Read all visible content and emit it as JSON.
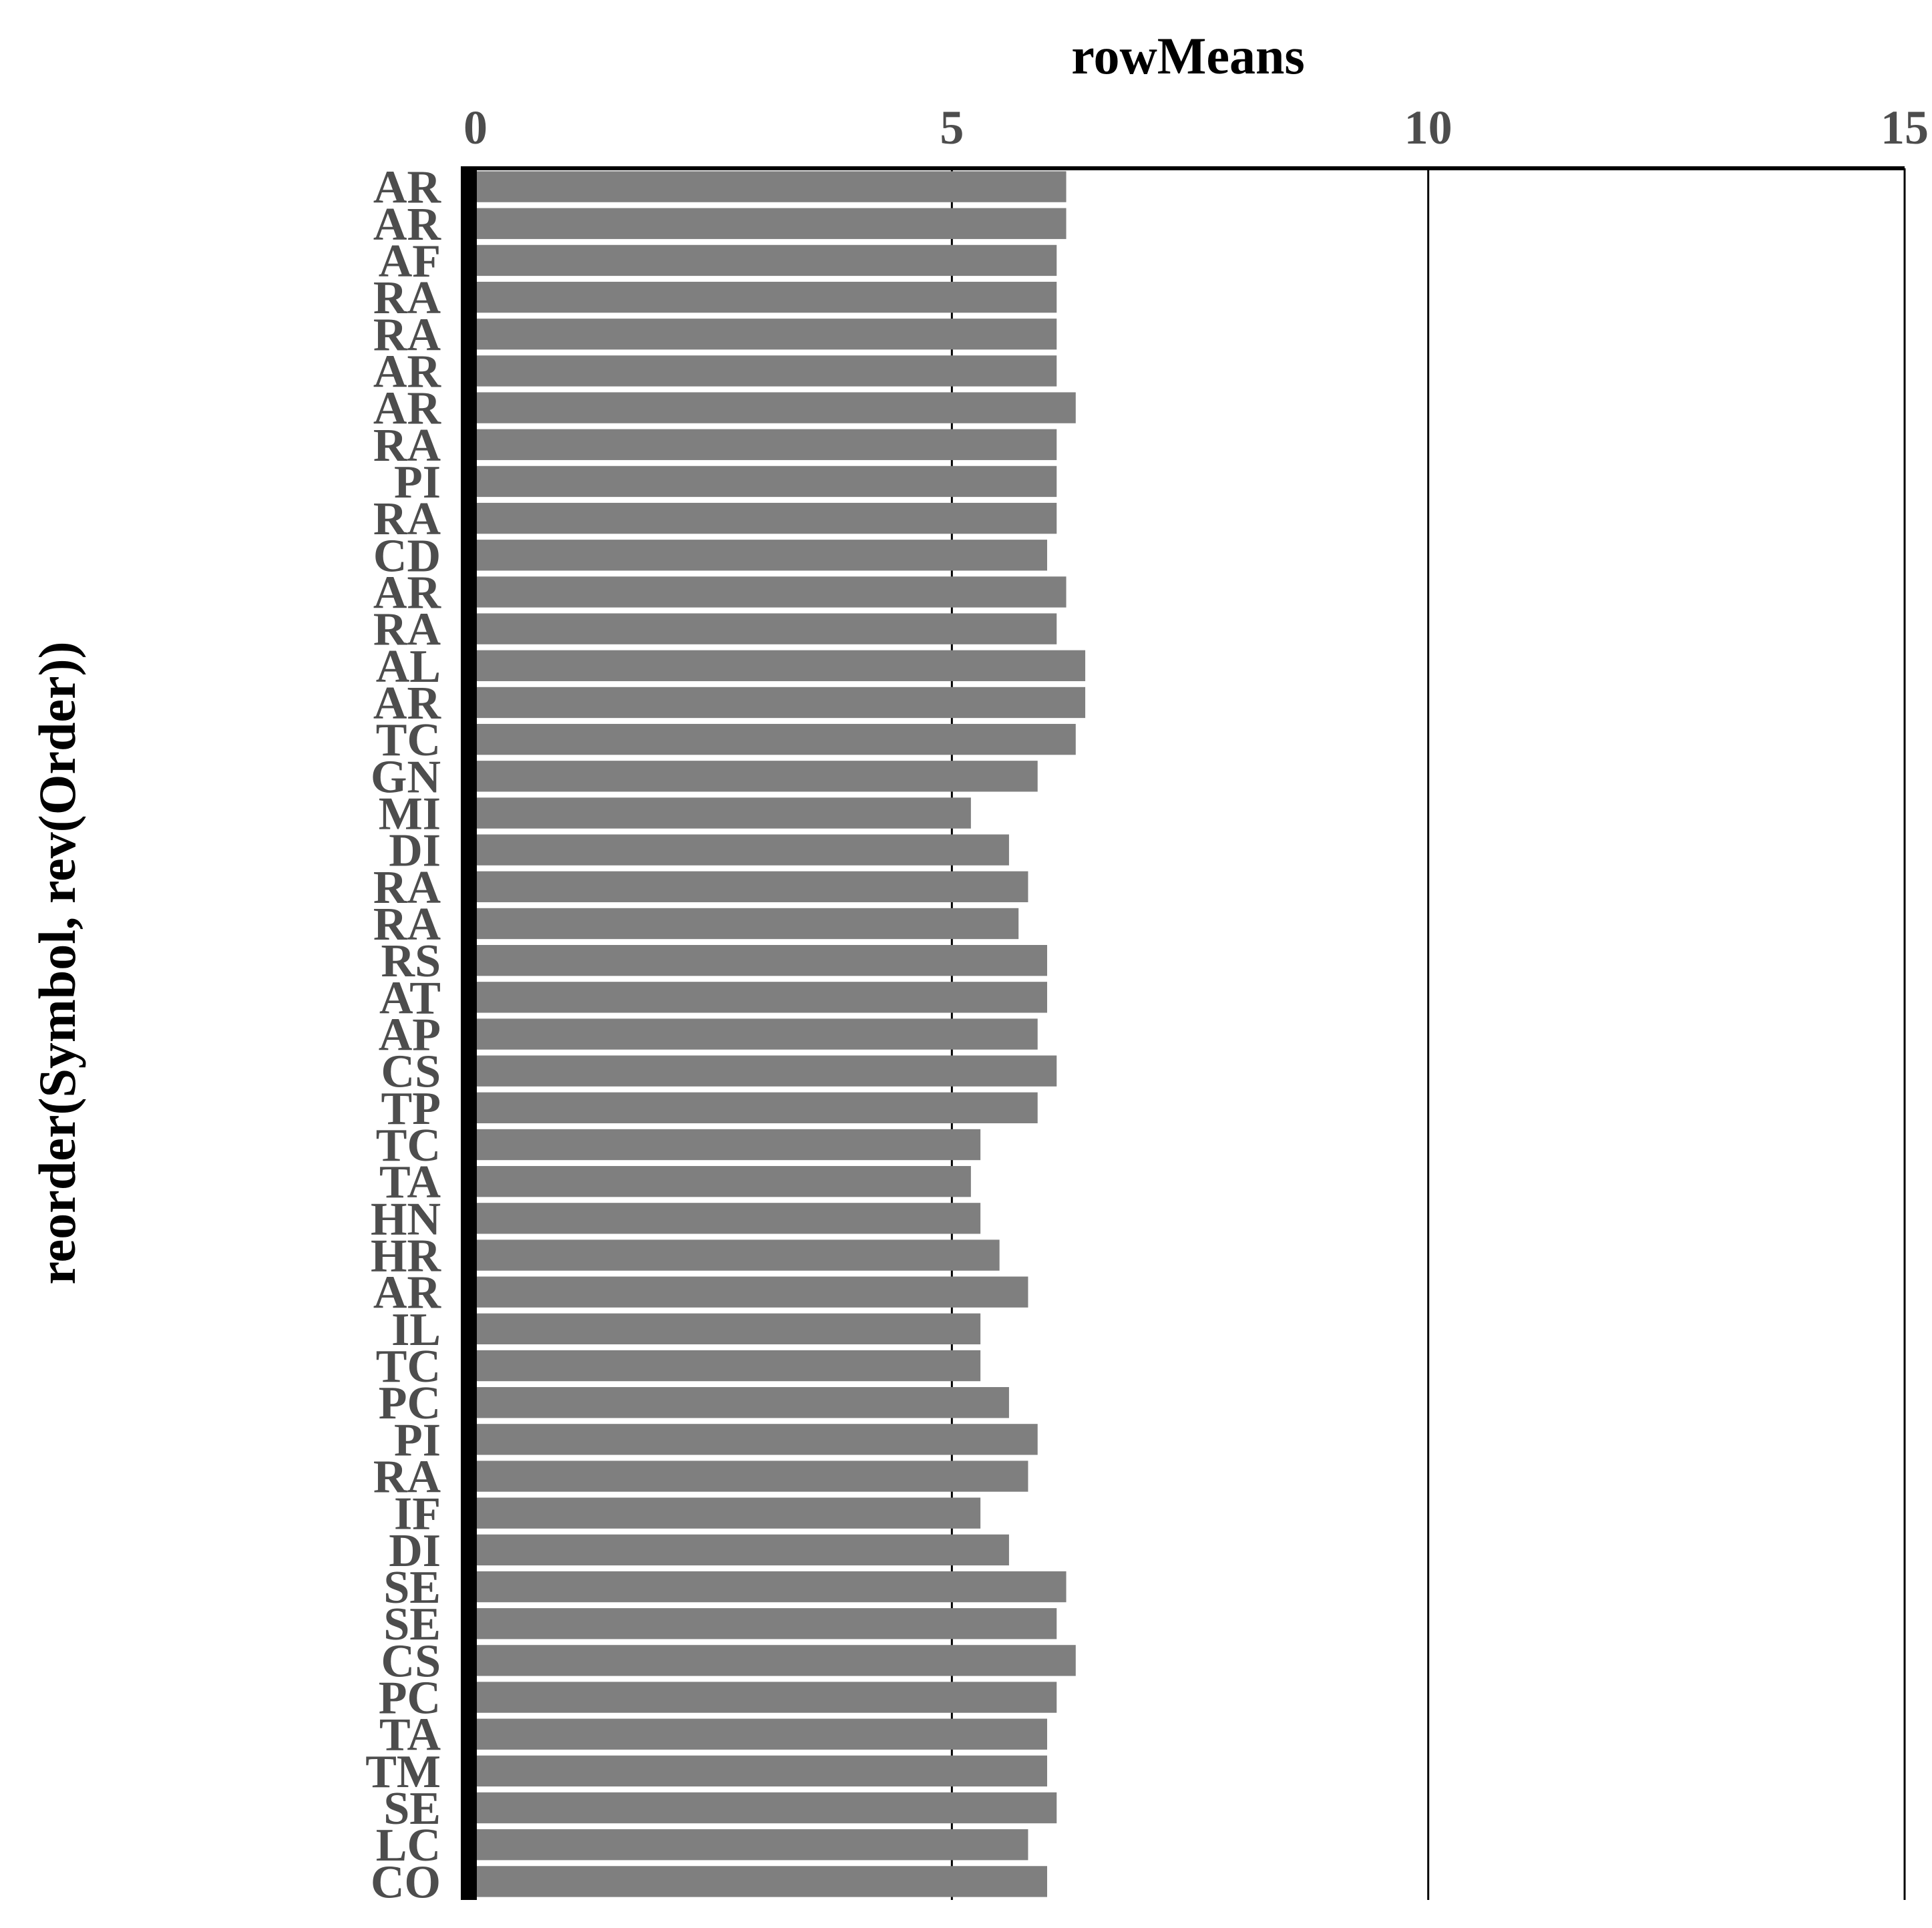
{
  "chart_data": {
    "type": "bar",
    "orientation": "horizontal",
    "title": "rowMeans",
    "xlabel": "rowMeans",
    "ylabel": "reorder(Symbol, rev(Order))",
    "xlim": [
      0,
      15
    ],
    "xticks": [
      0,
      5,
      10,
      15
    ],
    "xtick_labels": [
      "0",
      "5",
      "10",
      "15"
    ],
    "x_axis_position": "top",
    "grid": "vertical major lines",
    "legend": "none",
    "categories": [
      "AR",
      "AR",
      "AF",
      "RA",
      "RA",
      "AR",
      "AR",
      "RA",
      "PI",
      "RA",
      "CD",
      "AR",
      "RA",
      "AL",
      "AR",
      "TC",
      "GN",
      "MI",
      "DI",
      "RA",
      "RA",
      "RS",
      "AT",
      "AP",
      "CS",
      "TP",
      "TC",
      "TA",
      "HN",
      "HR",
      "AR",
      "IL",
      "TC",
      "PC",
      "PI",
      "RA",
      "IF",
      "DI",
      "SE",
      "SE",
      "CS",
      "PC",
      "TA",
      "TM",
      "SE",
      "LC",
      "CO"
    ],
    "values": [
      6.2,
      6.2,
      6.1,
      6.1,
      6.1,
      6.1,
      6.3,
      6.1,
      6.1,
      6.1,
      6.0,
      6.2,
      6.1,
      6.4,
      6.4,
      6.3,
      5.9,
      5.2,
      5.6,
      5.8,
      5.7,
      6.0,
      6.0,
      5.9,
      6.1,
      5.9,
      5.3,
      5.2,
      5.3,
      5.5,
      5.8,
      5.3,
      5.3,
      5.6,
      5.9,
      5.8,
      5.3,
      5.6,
      6.2,
      6.1,
      6.3,
      6.1,
      6.0,
      6.0,
      6.1,
      5.8,
      6.0
    ],
    "bar_count_note": "",
    "bar_color": "#7f7f7f"
  }
}
